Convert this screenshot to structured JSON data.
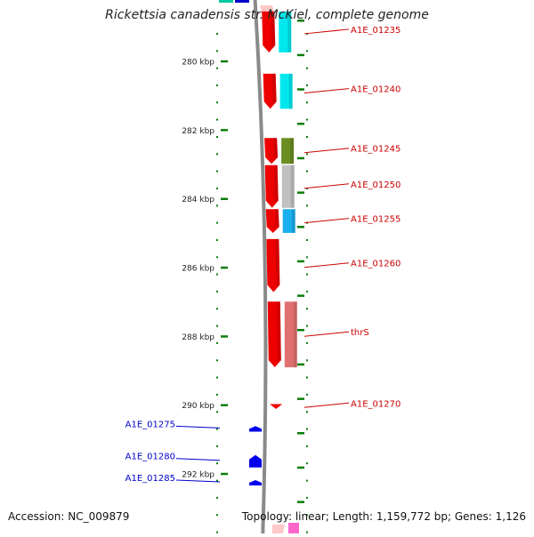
{
  "title": "Rickettsia canadensis str. McKiel, complete genome",
  "footer": {
    "accession": "Accession: NC_009879",
    "summary": "Topology: linear; Length: 1,159,772 bp; Genes: 1,126"
  },
  "colors": {
    "tick": "#0a7d0a",
    "forward_label": "#cc0000",
    "reverse_label": "#0000cc",
    "backbone": "#8a8a8a"
  },
  "scale": {
    "start_kbp": 278.45,
    "end_kbp": 293.9,
    "labels": [
      {
        "kbp": 280,
        "text": "280 kbp"
      },
      {
        "kbp": 282,
        "text": "282 kbp"
      },
      {
        "kbp": 284,
        "text": "284 kbp"
      },
      {
        "kbp": 286,
        "text": "286 kbp"
      },
      {
        "kbp": 288,
        "text": "288 kbp"
      },
      {
        "kbp": 290,
        "text": "290 kbp"
      },
      {
        "kbp": 292,
        "text": "292 kbp"
      }
    ]
  },
  "genes": [
    {
      "name": "A1E_01235",
      "strand": "+",
      "start_kbp": 278.55,
      "end_kbp": 279.74,
      "color": "#ee0000",
      "cog_color": "#00e8ee"
    },
    {
      "name": "A1E_01240",
      "strand": "+",
      "start_kbp": 280.36,
      "end_kbp": 281.38,
      "color": "#ee0000",
      "cog_color": "#00e8ee"
    },
    {
      "name": "A1E_01245",
      "strand": "+",
      "start_kbp": 282.23,
      "end_kbp": 282.98,
      "color": "#ee0000",
      "cog_color": "#6b8e23"
    },
    {
      "name": "A1E_01250",
      "strand": "+",
      "start_kbp": 283.02,
      "end_kbp": 284.26,
      "color": "#ee0000",
      "cog_color": "#c0c0c0"
    },
    {
      "name": "A1E_01255",
      "strand": "+",
      "start_kbp": 284.3,
      "end_kbp": 284.99,
      "color": "#ee0000",
      "cog_color": "#1ab0ee"
    },
    {
      "name": "A1E_01260",
      "strand": "+",
      "start_kbp": 285.17,
      "end_kbp": 286.71,
      "color": "#ee0000",
      "cog_color": ""
    },
    {
      "name": "thrS",
      "strand": "+",
      "start_kbp": 286.99,
      "end_kbp": 288.9,
      "color": "#ee0000",
      "cog_color": "#e07070"
    },
    {
      "name": "A1E_01270",
      "strand": "+",
      "start_kbp": 289.97,
      "end_kbp": 290.06,
      "color": "#ee0000",
      "cog_color": ""
    },
    {
      "name": "A1E_01275",
      "strand": "-",
      "start_kbp": 290.61,
      "end_kbp": 290.77,
      "color": "#0000ee",
      "cog_color": ""
    },
    {
      "name": "A1E_01280",
      "strand": "-",
      "start_kbp": 291.45,
      "end_kbp": 291.81,
      "color": "#0000ee",
      "cog_color": ""
    },
    {
      "name": "A1E_01285",
      "strand": "-",
      "start_kbp": 292.18,
      "end_kbp": 292.33,
      "color": "#0000ee",
      "cog_color": ""
    }
  ]
}
